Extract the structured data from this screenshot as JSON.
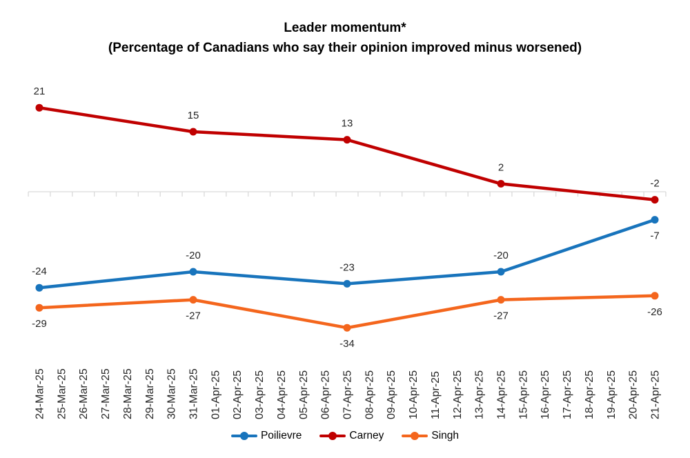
{
  "title": "Leader momentum*",
  "subtitle": "(Percentage of Canadians who say their opinion improved minus worsened)",
  "chart_data": {
    "type": "line",
    "title": "Leader momentum*",
    "subtitle": "(Percentage of Canadians who say their opinion improved minus worsened)",
    "x_categories": [
      "24-Mar-25",
      "25-Mar-25",
      "26-Mar-25",
      "27-Mar-25",
      "28-Mar-25",
      "29-Mar-25",
      "30-Mar-25",
      "31-Mar-25",
      "01-Apr-25",
      "02-Apr-25",
      "03-Apr-25",
      "04-Apr-25",
      "05-Apr-25",
      "06-Apr-25",
      "07-Apr-25",
      "08-Apr-25",
      "09-Apr-25",
      "10-Apr-25",
      "11-Apr-25",
      "12-Apr-25",
      "13-Apr-25",
      "14-Apr-25",
      "15-Apr-25",
      "16-Apr-25",
      "17-Apr-25",
      "18-Apr-25",
      "19-Apr-25",
      "20-Apr-25",
      "21-Apr-25"
    ],
    "point_category_indices": [
      0,
      7,
      14,
      21,
      28
    ],
    "series": [
      {
        "name": "Poilievre",
        "color": "#1874BC",
        "values": [
          -24,
          -20,
          -23,
          -20,
          -7
        ],
        "label_sides": [
          "above",
          "above",
          "above",
          "above",
          "below"
        ]
      },
      {
        "name": "Carney",
        "color": "#C00000",
        "values": [
          21,
          15,
          13,
          2,
          -2
        ],
        "label_sides": [
          "above",
          "above",
          "above",
          "above",
          "above"
        ]
      },
      {
        "name": "Singh",
        "color": "#F4661D",
        "values": [
          -29,
          -27,
          -34,
          -27,
          -26
        ],
        "label_sides": [
          "below",
          "below",
          "below",
          "below",
          "below"
        ]
      }
    ],
    "axis_color": "#D9D9D9",
    "label_color": "#262626",
    "grid": false,
    "legend_position": "bottom",
    "legend": [
      "Poilievre",
      "Carney",
      "Singh"
    ],
    "ylim": [
      -40,
      27
    ]
  }
}
